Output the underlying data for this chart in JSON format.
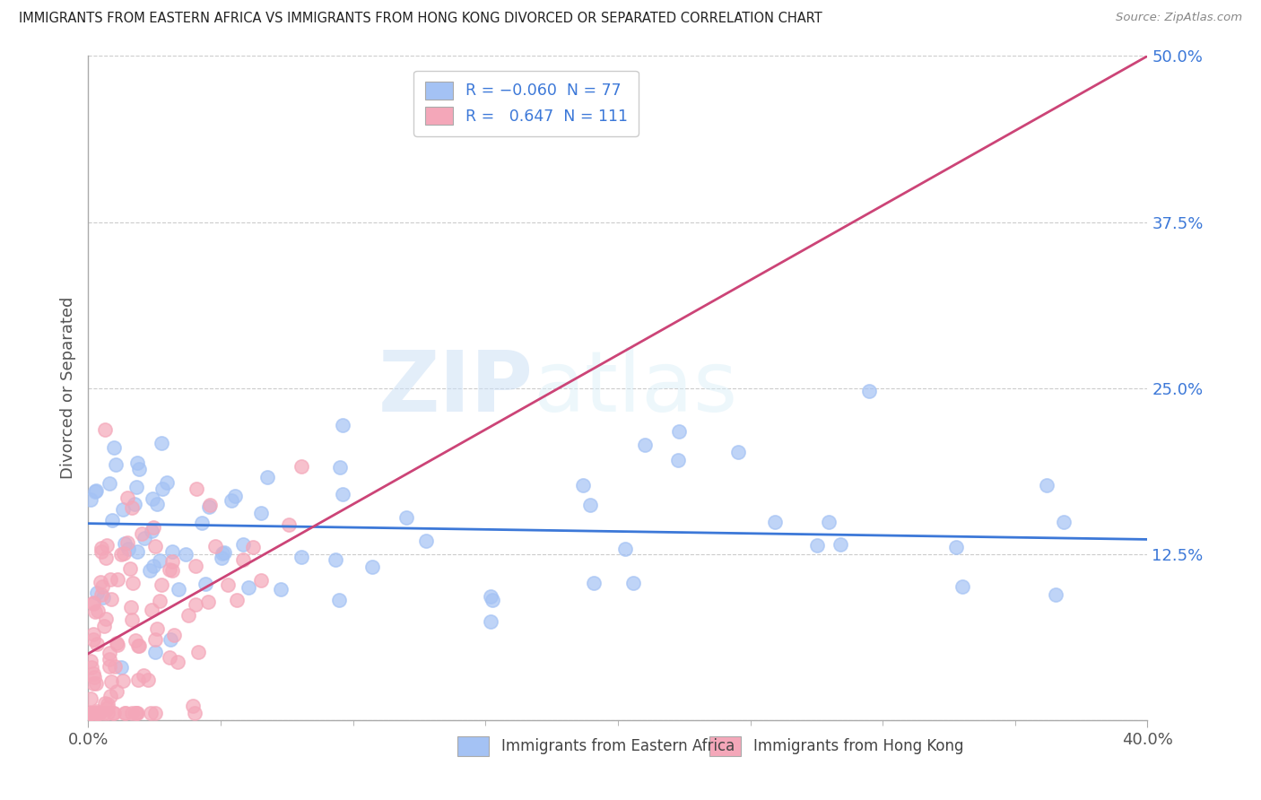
{
  "title": "IMMIGRANTS FROM EASTERN AFRICA VS IMMIGRANTS FROM HONG KONG DIVORCED OR SEPARATED CORRELATION CHART",
  "source": "Source: ZipAtlas.com",
  "ylabel": "Divorced or Separated",
  "legend_label1": "Immigrants from Eastern Africa",
  "legend_label2": "Immigrants from Hong Kong",
  "R1": -0.06,
  "N1": 77,
  "R2": 0.647,
  "N2": 111,
  "color1": "#a4c2f4",
  "color2": "#f4a7b9",
  "line_color1": "#3c78d8",
  "line_color2": "#cc4477",
  "xlim": [
    0.0,
    0.4
  ],
  "ylim": [
    0.0,
    0.5
  ],
  "watermark_zip": "ZIP",
  "watermark_atlas": "atlas",
  "bg_color": "#ffffff"
}
